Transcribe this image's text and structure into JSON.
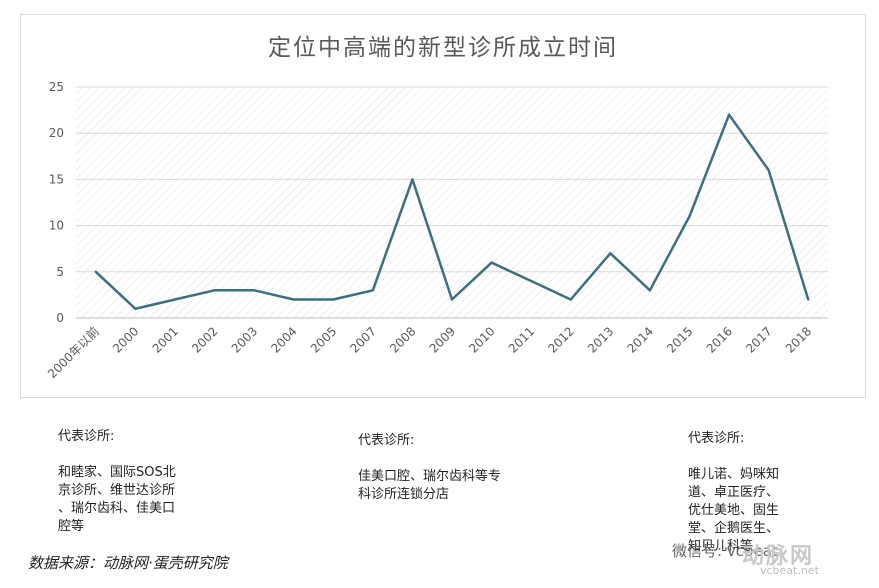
{
  "chart_data": {
    "type": "line",
    "title": "定位中高端的新型诊所成立时间",
    "categories": [
      "2000年以前",
      "2000",
      "2001",
      "2002",
      "2003",
      "2004",
      "2005",
      "2007",
      "2008",
      "2009",
      "2010",
      "2011",
      "2012",
      "2013",
      "2014",
      "2015",
      "2016",
      "2017",
      "2018"
    ],
    "series": [
      {
        "values": [
          5,
          1,
          2,
          3,
          3,
          2,
          2,
          3,
          15,
          2,
          6,
          4,
          2,
          7,
          3,
          11,
          22,
          16,
          2
        ]
      }
    ],
    "ylim": [
      0,
      25
    ],
    "yticks": [
      0,
      5,
      10,
      15,
      20,
      25
    ],
    "grid": true,
    "legend": "none",
    "line_color": "#3f6f7f"
  },
  "notes": [
    {
      "title": "代表诊所:",
      "text": "和睦家、国际SOS北\n京诊所、维世达诊所\n、瑞尔齿科、佳美口\n腔等"
    },
    {
      "title": "代表诊所:",
      "text": "佳美口腔、瑞尔齿科等专\n科诊所连锁分店"
    },
    {
      "title": "代表诊所:",
      "text": "唯儿诺、妈咪知\n道、卓正医疗、\n优仕美地、固生\n堂、企鹅医生、\n知贝儿科等"
    }
  ],
  "source": "数据来源：动脉网·蛋壳研究院",
  "watermark": {
    "wechat": "微信号: vcbeat",
    "logo": "动脉网",
    "site": "vcbeat.net"
  }
}
